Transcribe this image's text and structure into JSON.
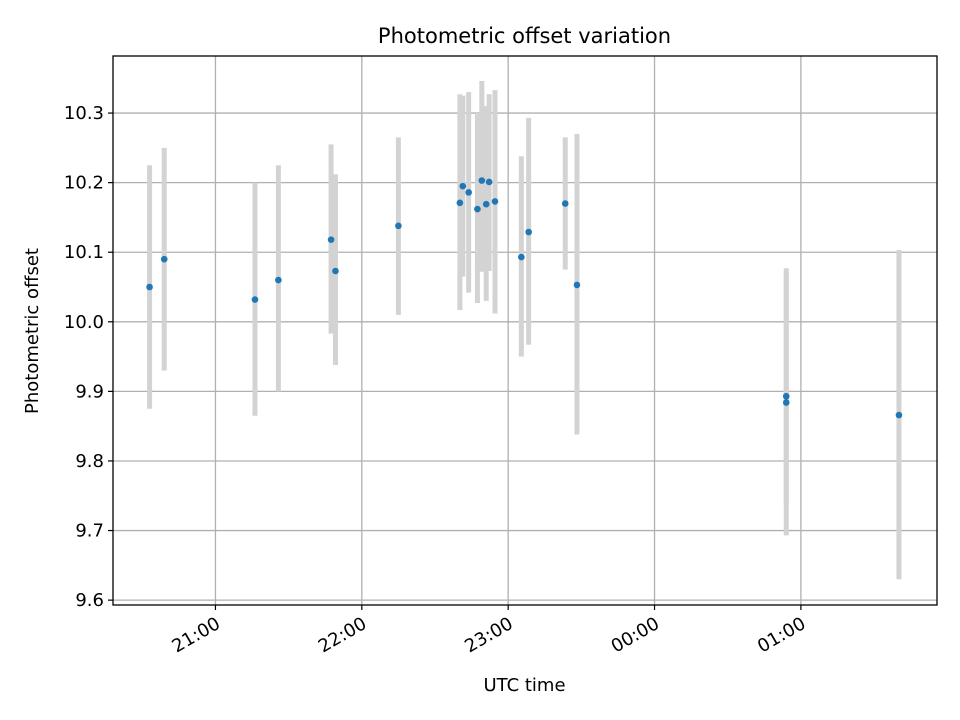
{
  "chart_data": {
    "type": "scatter",
    "title": "Photometric offset variation",
    "xlabel": "UTC time",
    "ylabel": "Photometric offset",
    "x_unit": "UTC hours (values >= 24 fall after midnight)",
    "xlim": [
      20.3,
      25.93
    ],
    "ylim": [
      9.593,
      10.382
    ],
    "x_ticks": [
      {
        "value": 21,
        "label": "21:00"
      },
      {
        "value": 22,
        "label": "22:00"
      },
      {
        "value": 23,
        "label": "23:00"
      },
      {
        "value": 24,
        "label": "00:00"
      },
      {
        "value": 25,
        "label": "01:00"
      }
    ],
    "y_ticks": [
      {
        "value": 9.6,
        "label": "9.6"
      },
      {
        "value": 9.7,
        "label": "9.7"
      },
      {
        "value": 9.8,
        "label": "9.8"
      },
      {
        "value": 9.9,
        "label": "9.9"
      },
      {
        "value": 10.0,
        "label": "10.0"
      },
      {
        "value": 10.1,
        "label": "10.1"
      },
      {
        "value": 10.2,
        "label": "10.2"
      },
      {
        "value": 10.3,
        "label": "10.3"
      }
    ],
    "grid": true,
    "colors": {
      "points": "#1f77b4",
      "errorbars": "#d3d3d3",
      "grid": "#b0b0b0",
      "axes": "#000000"
    },
    "points": [
      {
        "x": 20.55,
        "y": 10.05,
        "err_low": 9.875,
        "err_high": 10.225
      },
      {
        "x": 20.65,
        "y": 10.09,
        "err_low": 9.93,
        "err_high": 10.25
      },
      {
        "x": 21.27,
        "y": 10.032,
        "err_low": 9.865,
        "err_high": 10.2
      },
      {
        "x": 21.43,
        "y": 10.06,
        "err_low": 9.9,
        "err_high": 10.225
      },
      {
        "x": 21.79,
        "y": 10.118,
        "err_low": 9.983,
        "err_high": 10.255
      },
      {
        "x": 21.82,
        "y": 10.073,
        "err_low": 9.938,
        "err_high": 10.212
      },
      {
        "x": 22.25,
        "y": 10.138,
        "err_low": 10.01,
        "err_high": 10.265
      },
      {
        "x": 22.67,
        "y": 10.171,
        "err_low": 10.017,
        "err_high": 10.327
      },
      {
        "x": 22.69,
        "y": 10.195,
        "err_low": 10.065,
        "err_high": 10.325
      },
      {
        "x": 22.73,
        "y": 10.186,
        "err_low": 10.042,
        "err_high": 10.33
      },
      {
        "x": 22.79,
        "y": 10.162,
        "err_low": 10.027,
        "err_high": 10.3
      },
      {
        "x": 22.82,
        "y": 10.203,
        "err_low": 10.072,
        "err_high": 10.346
      },
      {
        "x": 22.85,
        "y": 10.169,
        "err_low": 10.03,
        "err_high": 10.31
      },
      {
        "x": 22.87,
        "y": 10.201,
        "err_low": 10.073,
        "err_high": 10.327
      },
      {
        "x": 22.91,
        "y": 10.173,
        "err_low": 10.012,
        "err_high": 10.333
      },
      {
        "x": 23.09,
        "y": 10.093,
        "err_low": 9.95,
        "err_high": 10.238
      },
      {
        "x": 23.14,
        "y": 10.129,
        "err_low": 9.967,
        "err_high": 10.293
      },
      {
        "x": 23.39,
        "y": 10.17,
        "err_low": 10.075,
        "err_high": 10.265
      },
      {
        "x": 23.47,
        "y": 10.053,
        "err_low": 9.838,
        "err_high": 10.27
      },
      {
        "x": 24.9,
        "y": 9.893,
        "err_low": 9.738,
        "err_high": 10.077
      },
      {
        "x": 24.9,
        "y": 9.884,
        "err_low": 9.693,
        "err_high": 10.07
      },
      {
        "x": 25.67,
        "y": 9.866,
        "err_low": 9.63,
        "err_high": 10.103
      }
    ]
  }
}
